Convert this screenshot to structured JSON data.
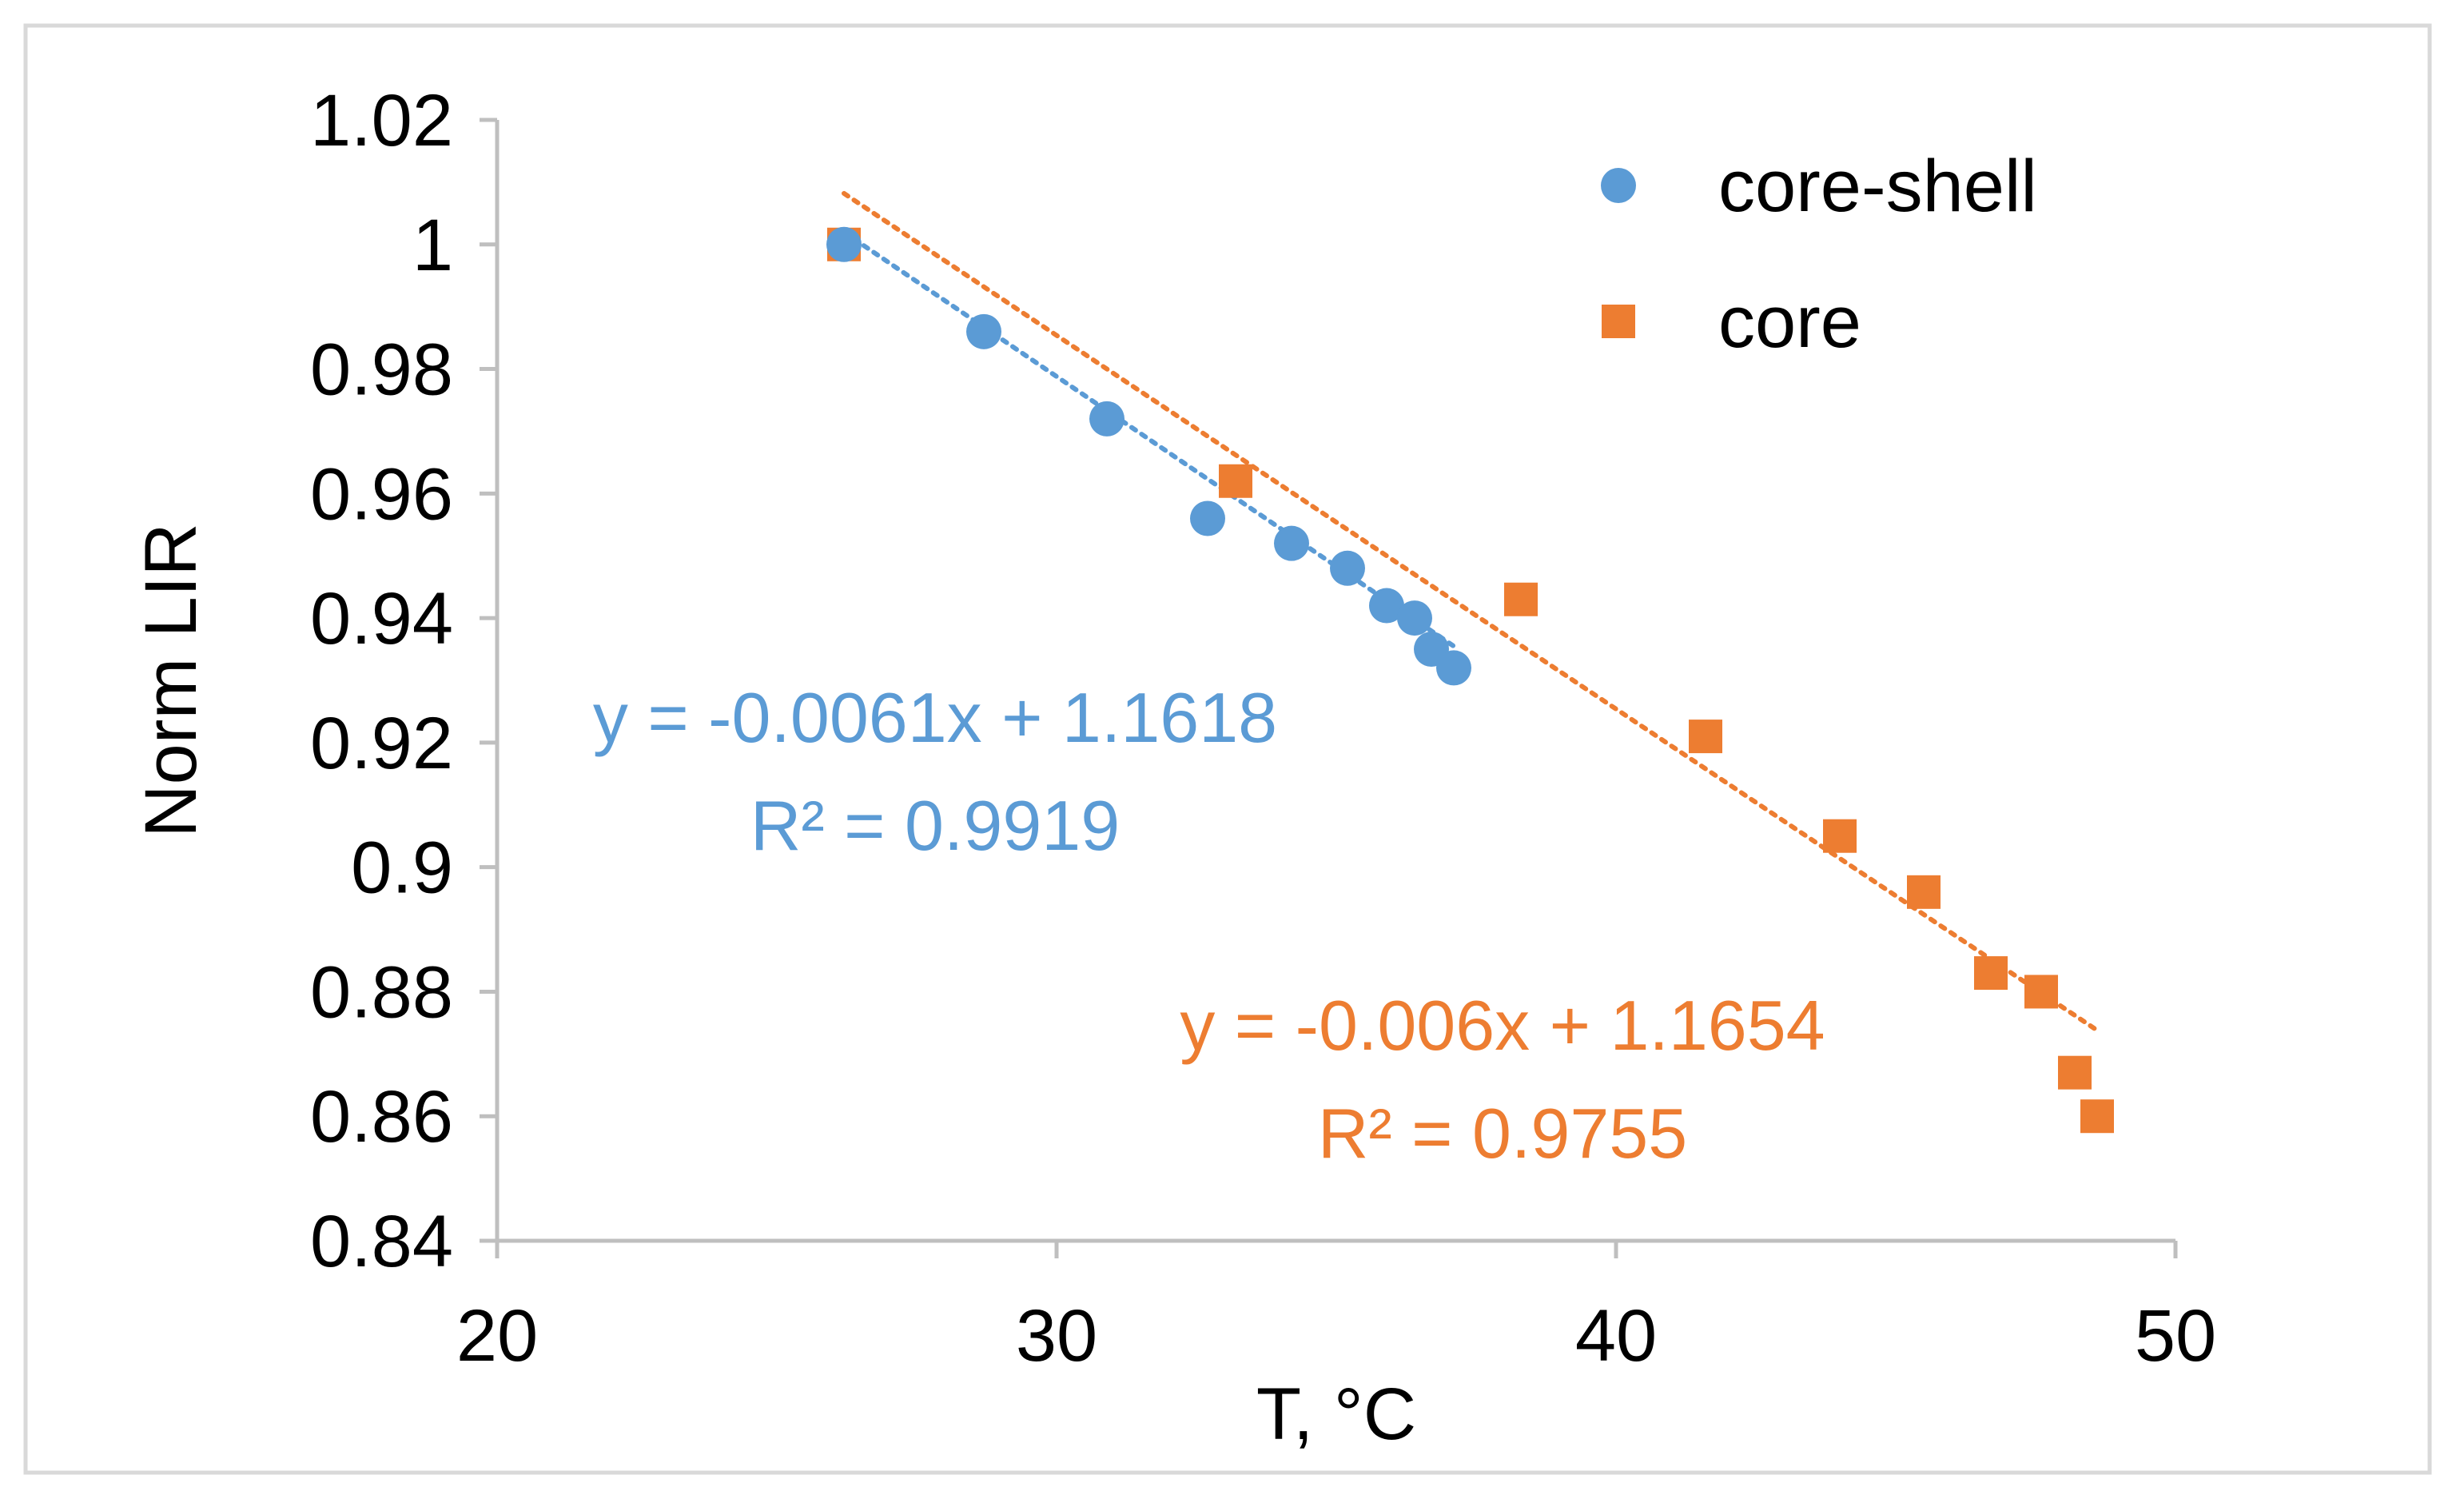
{
  "chart_data": {
    "type": "scatter",
    "title": "",
    "xlabel": "T, °C",
    "ylabel": "Norm LIR",
    "xlim": [
      20,
      50
    ],
    "ylim": [
      0.84,
      1.02
    ],
    "xticks": [
      20,
      30,
      40,
      50
    ],
    "yticks": [
      0.84,
      0.86,
      0.88,
      0.9,
      0.92,
      0.94,
      0.96,
      0.98,
      1,
      1.02
    ],
    "xtick_labels": [
      "20",
      "30",
      "40",
      "50"
    ],
    "ytick_labels": [
      "0.84",
      "0.86",
      "0.88",
      "0.9",
      "0.92",
      "0.94",
      "0.96",
      "0.98",
      "1",
      "1.02"
    ],
    "grid": false,
    "legend_position": "top-right",
    "series": [
      {
        "name": "core-shell",
        "color": "#5B9BD5",
        "marker": "circle",
        "x": [
          26.2,
          28.7,
          30.9,
          32.7,
          34.2,
          35.2,
          35.9,
          36.4,
          36.7,
          37.1
        ],
        "y": [
          1.0,
          0.986,
          0.972,
          0.956,
          0.952,
          0.948,
          0.942,
          0.94,
          0.935,
          0.932
        ],
        "trendline": {
          "slope": -0.0061,
          "intercept": 1.1618,
          "x_range": [
            26.2,
            37.1
          ],
          "equation": "y = -0.0061x + 1.1618",
          "r2": "R² = 0.9919"
        }
      },
      {
        "name": "core",
        "color": "#ED7D31",
        "marker": "square",
        "x": [
          26.2,
          33.2,
          38.3,
          41.6,
          44.0,
          45.5,
          46.7,
          47.6,
          48.2,
          48.6
        ],
        "y": [
          1.0,
          0.962,
          0.943,
          0.921,
          0.905,
          0.896,
          0.883,
          0.88,
          0.867,
          0.86
        ],
        "trendline": {
          "slope": -0.006,
          "intercept": 1.1654,
          "x_range": [
            26.2,
            48.6
          ],
          "equation": "y = -0.006x + 1.1654",
          "r2": "R² = 0.9755"
        }
      }
    ]
  }
}
